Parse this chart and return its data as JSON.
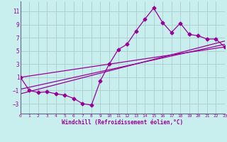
{
  "xlabel": "Windchill (Refroidissement éolien,°C)",
  "bg_color": "#c8eeee",
  "grid_color": "#aacccc",
  "line_color": "#990099",
  "spine_color": "#666688",
  "xlim": [
    0,
    23
  ],
  "ylim": [
    -4.5,
    12.5
  ],
  "xticks": [
    0,
    1,
    2,
    3,
    4,
    5,
    6,
    7,
    8,
    9,
    10,
    11,
    12,
    13,
    14,
    15,
    16,
    17,
    18,
    19,
    20,
    21,
    22,
    23
  ],
  "yticks": [
    -3,
    -1,
    1,
    3,
    5,
    7,
    9,
    11
  ],
  "main_series_x": [
    0,
    1,
    2,
    3,
    4,
    5,
    6,
    7,
    8,
    9,
    10,
    11,
    12,
    13,
    14,
    15,
    16,
    17,
    18,
    19,
    20,
    21,
    22,
    23
  ],
  "main_series_y": [
    1.0,
    -1.0,
    -1.3,
    -1.2,
    -1.5,
    -1.7,
    -2.2,
    -3.0,
    -3.2,
    0.5,
    3.0,
    5.2,
    6.0,
    8.0,
    9.8,
    11.5,
    9.3,
    7.8,
    9.2,
    7.5,
    7.3,
    6.8,
    6.8,
    5.6
  ],
  "line1_x": [
    0,
    23
  ],
  "line1_y": [
    1.0,
    5.6
  ],
  "line2_x": [
    0,
    23
  ],
  "line2_y": [
    -0.8,
    6.0
  ],
  "line3_x": [
    0,
    23
  ],
  "line3_y": [
    -1.5,
    6.5
  ],
  "marker_style": "D",
  "marker_size": 2.5,
  "line_width": 0.9
}
